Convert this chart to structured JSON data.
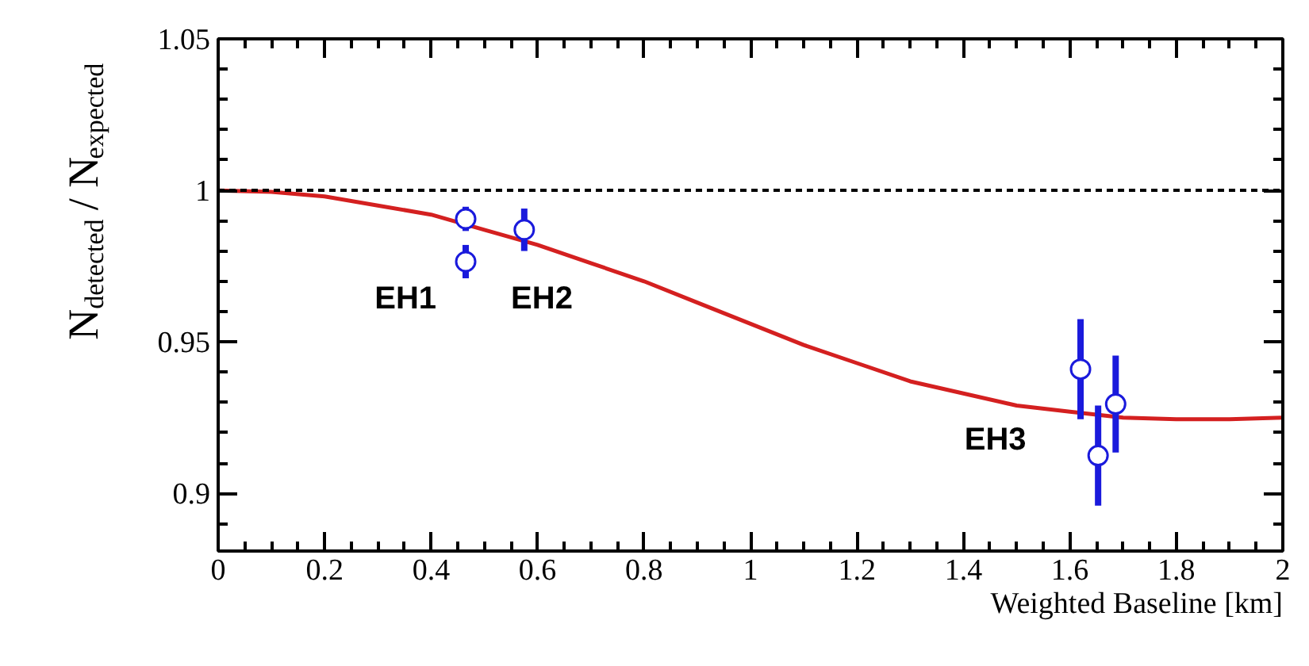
{
  "chart_data": {
    "type": "scatter",
    "xlabel": "Weighted Baseline [km]",
    "ylabel": "N$_{detected}$ / N$_{expected}$",
    "xlim": [
      0,
      2
    ],
    "xticks": [
      0,
      0.2,
      0.4,
      0.6,
      0.8,
      1,
      1.2,
      1.4,
      1.6,
      1.8,
      2
    ],
    "ylim": [
      0.881,
      1.05
    ],
    "yticks": [
      0.9,
      0.95,
      1,
      1.05
    ],
    "grid": false,
    "series": [
      {
        "type": "line",
        "color": "#d42020",
        "line_style": "solid",
        "marker": "none",
        "x": [
          0,
          0.1,
          0.2,
          0.3,
          0.4,
          0.5,
          0.6,
          0.7,
          0.8,
          0.9,
          1.0,
          1.1,
          1.2,
          1.3,
          1.4,
          1.5,
          1.6,
          1.7,
          1.8,
          1.9,
          2.0
        ],
        "values": [
          1.0,
          0.9995,
          0.998,
          0.995,
          0.992,
          0.987,
          0.982,
          0.976,
          0.97,
          0.963,
          0.956,
          0.949,
          0.943,
          0.937,
          0.933,
          0.929,
          0.927,
          0.925,
          0.9245,
          0.9245,
          0.925
        ]
      },
      {
        "color": "#1a1adc",
        "marker": "circle",
        "x": [
          0.465,
          0.465,
          0.575,
          1.62,
          1.653,
          1.686
        ],
        "values": [
          0.9906,
          0.9765,
          0.987,
          0.941,
          0.9125,
          0.9295
        ],
        "errors": [
          0.004,
          0.0055,
          0.007,
          0.0165,
          0.0165,
          0.016
        ]
      }
    ],
    "ref_lines": [
      {
        "axis": "y",
        "value": 1,
        "color": "#000000",
        "line_style": "dashed"
      }
    ],
    "annotations": [
      "EH1",
      "EH2",
      "EH3"
    ]
  }
}
